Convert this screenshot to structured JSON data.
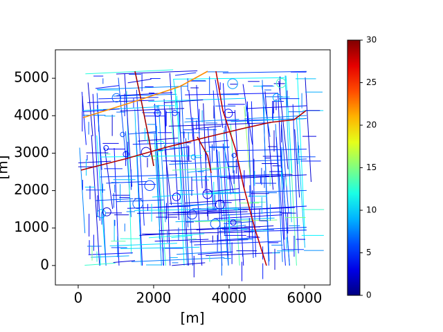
{
  "chart_data": {
    "type": "map",
    "xlabel": "[m]",
    "ylabel": "[m]",
    "xlim": [
      -605,
      6680
    ],
    "ylim": [
      -520,
      5760
    ],
    "xticks": [
      0,
      2000,
      4000,
      6000
    ],
    "yticks": [
      0,
      1000,
      2000,
      3000,
      4000,
      5000
    ],
    "colormap": "jet",
    "colorbar": {
      "lim": [
        0,
        30
      ],
      "ticks": [
        0,
        5,
        10,
        15,
        20,
        25,
        30
      ]
    }
  }
}
